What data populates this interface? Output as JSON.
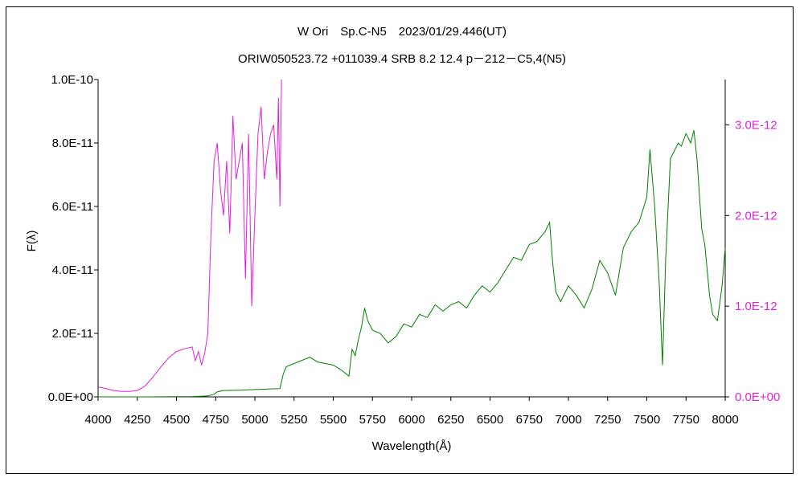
{
  "chart_data": {
    "type": "line",
    "title": "W Ori　Sp.C-N5　2023/01/29.446(UT)",
    "subtitle": "ORIW050523.72 +011039.4 SRB 8.2 12.4 p－212－C5,4(N5)",
    "xlabel": "Wavelength(Å)",
    "ylabel": "F(λ)",
    "xlim": [
      4000,
      8000
    ],
    "ylim_left": [
      0,
      1e-10
    ],
    "ylim_right": [
      0,
      3.5e-12
    ],
    "x_ticks": [
      "4000",
      "4250",
      "4500",
      "4750",
      "5000",
      "5250",
      "5500",
      "5750",
      "6000",
      "6250",
      "6500",
      "6750",
      "7000",
      "7250",
      "7500",
      "7750",
      "8000"
    ],
    "y_ticks_left": [
      "0.0E+00",
      "2.0E-11",
      "4.0E-11",
      "6.0E-11",
      "8.0E-11",
      "1.0E-10"
    ],
    "y_ticks_right": [
      "0.0E+00",
      "1.0E-12",
      "2.0E-12",
      "3.0E-12"
    ],
    "grid": false,
    "series": [
      {
        "axis": "left",
        "color": "#008000",
        "x": [
          4000,
          4300,
          4600,
          4700,
          4740,
          4760,
          4800,
          4900,
          5000,
          5100,
          5160,
          5180,
          5200,
          5250,
          5300,
          5350,
          5400,
          5450,
          5500,
          5550,
          5600,
          5620,
          5640,
          5660,
          5680,
          5700,
          5720,
          5750,
          5800,
          5850,
          5900,
          5950,
          6000,
          6050,
          6100,
          6150,
          6200,
          6250,
          6300,
          6350,
          6400,
          6450,
          6500,
          6550,
          6600,
          6650,
          6700,
          6750,
          6800,
          6850,
          6880,
          6900,
          6920,
          6950,
          7000,
          7050,
          7100,
          7150,
          7200,
          7250,
          7300,
          7350,
          7400,
          7450,
          7500,
          7520,
          7550,
          7580,
          7600,
          7620,
          7650,
          7700,
          7720,
          7750,
          7780,
          7800,
          7820,
          7850,
          7870,
          7900,
          7920,
          7950,
          7980,
          8000
        ],
        "y": [
          0,
          0,
          1e-13,
          3e-13,
          8e-13,
          1.6e-12,
          2e-12,
          2.1e-12,
          2.3e-12,
          2.5e-12,
          2.6e-12,
          7e-12,
          9.5e-12,
          1.05e-11,
          1.15e-11,
          1.25e-11,
          1.1e-11,
          1.05e-11,
          1e-11,
          8.5e-12,
          6.5e-12,
          1.5e-11,
          1.3e-11,
          1.8e-11,
          2.2e-11,
          2.8e-11,
          2.4e-11,
          2.1e-11,
          2e-11,
          1.7e-11,
          1.9e-11,
          2.3e-11,
          2.2e-11,
          2.6e-11,
          2.5e-11,
          2.9e-11,
          2.7e-11,
          2.9e-11,
          3e-11,
          2.8e-11,
          3.2e-11,
          3.5e-11,
          3.3e-11,
          3.6e-11,
          4e-11,
          4.4e-11,
          4.3e-11,
          4.8e-11,
          4.9e-11,
          5.2e-11,
          5.5e-11,
          4.2e-11,
          3.3e-11,
          3e-11,
          3.5e-11,
          3.2e-11,
          2.8e-11,
          3.4e-11,
          4.3e-11,
          3.9e-11,
          3.2e-11,
          4.7e-11,
          5.2e-11,
          5.5e-11,
          6.3e-11,
          7.8e-11,
          6e-11,
          3.5e-11,
          1e-11,
          4.3e-11,
          7.5e-11,
          8e-11,
          7.9e-11,
          8.3e-11,
          8e-11,
          8.4e-11,
          7.5e-11,
          5.3e-11,
          4.8e-11,
          3.2e-11,
          2.6e-11,
          2.4e-11,
          3.5e-11,
          4.7e-11
        ]
      },
      {
        "axis": "right",
        "color": "#e020d8",
        "x": [
          4000,
          4050,
          4100,
          4150,
          4200,
          4250,
          4300,
          4350,
          4400,
          4450,
          4500,
          4550,
          4600,
          4620,
          4640,
          4660,
          4680,
          4700,
          4720,
          4740,
          4760,
          4780,
          4800,
          4820,
          4840,
          4860,
          4880,
          4900,
          4920,
          4940,
          4960,
          4980,
          5000,
          5020,
          5040,
          5060,
          5080,
          5100,
          5120,
          5140,
          5150,
          5160,
          5170
        ],
        "y": [
          1.1e-13,
          9e-14,
          7e-14,
          6e-14,
          6e-14,
          7e-14,
          1.2e-13,
          2.2e-13,
          3.3e-13,
          4.3e-13,
          5e-13,
          5.3e-13,
          5.5e-13,
          4e-13,
          5e-13,
          3.5e-13,
          4.8e-13,
          7e-13,
          1.8e-12,
          2.6e-12,
          2.8e-12,
          2.3e-12,
          2e-12,
          2.6e-12,
          1.8e-12,
          3.1e-12,
          2.4e-12,
          2.6e-12,
          2.8e-12,
          1.3e-12,
          2.9e-12,
          1e-12,
          2e-12,
          2.9e-12,
          3.2e-12,
          2.4e-12,
          2.7e-12,
          2.9e-12,
          3e-12,
          2.4e-12,
          3.3e-12,
          2.1e-12,
          3.5e-12
        ]
      }
    ]
  }
}
